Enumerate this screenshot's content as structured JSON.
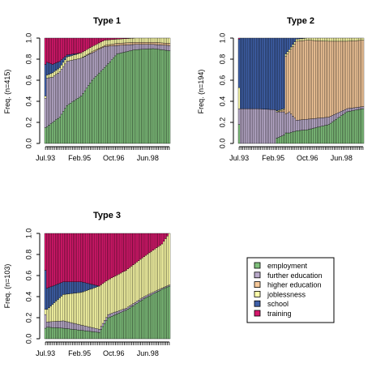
{
  "colors": {
    "employment": "#7fbf7b",
    "further education": "#b8a9c9",
    "higher education": "#f5c89a",
    "joblessness": "#ffffaa",
    "school": "#3f60a8",
    "training": "#d6186c"
  },
  "x_tick_labels": [
    "Jul.93",
    "Feb.95",
    "Oct.96",
    "Jun.98"
  ],
  "y_tick_labels": [
    "0.0",
    "0.2",
    "0.4",
    "0.6",
    "0.8",
    "1.0"
  ],
  "legend": {
    "items": [
      {
        "label": "employment",
        "color": "#7fbf7b"
      },
      {
        "label": "further education",
        "color": "#b8a9c9"
      },
      {
        "label": "higher education",
        "color": "#f5c89a"
      },
      {
        "label": "joblessness",
        "color": "#ffffaa"
      },
      {
        "label": "school",
        "color": "#3f60a8"
      },
      {
        "label": "training",
        "color": "#d6186c"
      }
    ]
  },
  "chart_data": [
    {
      "type": "bar",
      "stacked": true,
      "title": "Type 1",
      "ylabel": "Freq. (n=415)",
      "ylim": [
        0,
        1
      ],
      "n_bars": 70,
      "x_tick_labels": [
        "Jul.93",
        "Feb.95",
        "Oct.96",
        "Jun.98"
      ],
      "states": [
        "employment",
        "further education",
        "higher education",
        "joblessness",
        "school",
        "training"
      ],
      "keyframes": [
        {
          "t": 0,
          "values": [
            0.15,
            0.28,
            0.0,
            0.02,
            0.3,
            0.25
          ]
        },
        {
          "t": 1,
          "values": [
            0.16,
            0.46,
            0.0,
            0.03,
            0.12,
            0.23
          ]
        },
        {
          "t": 4,
          "values": [
            0.2,
            0.43,
            0.0,
            0.04,
            0.08,
            0.25
          ]
        },
        {
          "t": 8,
          "values": [
            0.25,
            0.43,
            0.0,
            0.04,
            0.06,
            0.22
          ]
        },
        {
          "t": 12,
          "values": [
            0.36,
            0.42,
            0.0,
            0.04,
            0.02,
            0.16
          ]
        },
        {
          "t": 20,
          "values": [
            0.45,
            0.36,
            0.0,
            0.05,
            0.0,
            0.14
          ]
        },
        {
          "t": 26,
          "values": [
            0.6,
            0.26,
            0.01,
            0.05,
            0.0,
            0.08
          ]
        },
        {
          "t": 33,
          "values": [
            0.72,
            0.2,
            0.01,
            0.05,
            0.0,
            0.02
          ]
        },
        {
          "t": 40,
          "values": [
            0.85,
            0.08,
            0.02,
            0.04,
            0.0,
            0.01
          ]
        },
        {
          "t": 50,
          "values": [
            0.89,
            0.05,
            0.02,
            0.04,
            0.0,
            0.0
          ]
        },
        {
          "t": 60,
          "values": [
            0.9,
            0.04,
            0.02,
            0.04,
            0.0,
            0.0
          ]
        },
        {
          "t": 69,
          "values": [
            0.88,
            0.05,
            0.02,
            0.05,
            0.0,
            0.0
          ]
        }
      ]
    },
    {
      "type": "bar",
      "stacked": true,
      "title": "Type 2",
      "ylabel": "Freq. (n=194)",
      "ylim": [
        0,
        1
      ],
      "n_bars": 70,
      "x_tick_labels": [
        "Jul.93",
        "Feb.95",
        "Oct.96",
        "Jun.98"
      ],
      "states": [
        "employment",
        "further education",
        "higher education",
        "joblessness",
        "school",
        "training"
      ],
      "keyframes": [
        {
          "t": 0,
          "values": [
            0.18,
            0.15,
            0.0,
            0.2,
            0.46,
            0.01
          ]
        },
        {
          "t": 1,
          "values": [
            0.0,
            0.33,
            0.0,
            0.0,
            0.67,
            0.0
          ]
        },
        {
          "t": 10,
          "values": [
            0.0,
            0.33,
            0.0,
            0.0,
            0.67,
            0.0
          ]
        },
        {
          "t": 20,
          "values": [
            0.0,
            0.32,
            0.0,
            0.0,
            0.68,
            0.0
          ]
        },
        {
          "t": 21,
          "values": [
            0.05,
            0.25,
            0.0,
            0.01,
            0.69,
            0.0
          ]
        },
        {
          "t": 25,
          "values": [
            0.08,
            0.22,
            0.02,
            0.01,
            0.67,
            0.0
          ]
        },
        {
          "t": 26,
          "values": [
            0.1,
            0.18,
            0.55,
            0.02,
            0.15,
            0.0
          ]
        },
        {
          "t": 28,
          "values": [
            0.1,
            0.2,
            0.57,
            0.02,
            0.11,
            0.0
          ]
        },
        {
          "t": 32,
          "values": [
            0.12,
            0.1,
            0.75,
            0.02,
            0.01,
            0.0
          ]
        },
        {
          "t": 38,
          "values": [
            0.13,
            0.1,
            0.75,
            0.02,
            0.0,
            0.0
          ]
        },
        {
          "t": 50,
          "values": [
            0.18,
            0.07,
            0.72,
            0.03,
            0.0,
            0.0
          ]
        },
        {
          "t": 60,
          "values": [
            0.3,
            0.03,
            0.64,
            0.03,
            0.0,
            0.0
          ]
        },
        {
          "t": 69,
          "values": [
            0.33,
            0.02,
            0.63,
            0.02,
            0.0,
            0.0
          ]
        }
      ]
    },
    {
      "type": "bar",
      "stacked": true,
      "title": "Type 3",
      "ylabel": "Freq. (n=103)",
      "ylim": [
        0,
        1
      ],
      "n_bars": 70,
      "x_tick_labels": [
        "Jul.93",
        "Feb.95",
        "Oct.96",
        "Jun.98"
      ],
      "states": [
        "employment",
        "further education",
        "higher education",
        "joblessness",
        "school",
        "training"
      ],
      "keyframes": [
        {
          "t": 0,
          "values": [
            0.1,
            0.13,
            0.0,
            0.05,
            0.37,
            0.35
          ]
        },
        {
          "t": 1,
          "values": [
            0.11,
            0.05,
            0.0,
            0.12,
            0.2,
            0.52
          ]
        },
        {
          "t": 10,
          "values": [
            0.1,
            0.07,
            0.0,
            0.25,
            0.12,
            0.46
          ]
        },
        {
          "t": 20,
          "values": [
            0.08,
            0.05,
            0.0,
            0.31,
            0.1,
            0.46
          ]
        },
        {
          "t": 30,
          "values": [
            0.06,
            0.03,
            0.0,
            0.41,
            0.0,
            0.5
          ]
        },
        {
          "t": 35,
          "values": [
            0.2,
            0.03,
            0.0,
            0.33,
            0.0,
            0.44
          ]
        },
        {
          "t": 45,
          "values": [
            0.27,
            0.02,
            0.0,
            0.36,
            0.0,
            0.35
          ]
        },
        {
          "t": 55,
          "values": [
            0.38,
            0.02,
            0.0,
            0.38,
            0.0,
            0.22
          ]
        },
        {
          "t": 65,
          "values": [
            0.47,
            0.01,
            0.0,
            0.42,
            0.0,
            0.1
          ]
        },
        {
          "t": 69,
          "values": [
            0.5,
            0.01,
            0.0,
            0.49,
            0.0,
            0.0
          ]
        }
      ]
    }
  ]
}
